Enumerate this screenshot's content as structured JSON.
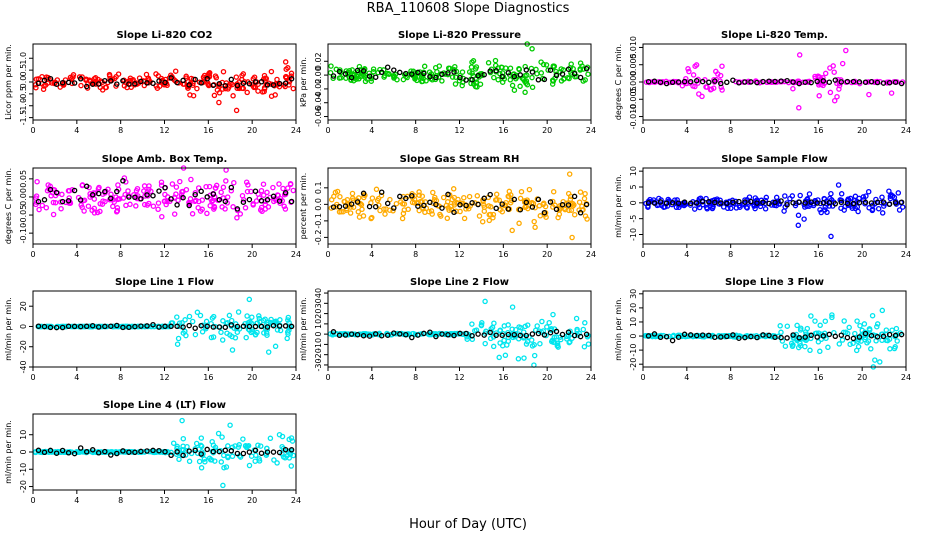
{
  "page": {
    "title": "RBA_110608  Slope Diagnostics",
    "xlabel": "Hour of Day (UTC)"
  },
  "chart_data": [
    {
      "type": "scatter",
      "title": "Slope Li-820 CO2",
      "ylabel": "Licor ppm per min.",
      "xlim": [
        0,
        24
      ],
      "xticks": [
        0,
        4,
        8,
        12,
        16,
        20,
        24
      ],
      "ylim": [
        -1.6,
        1.6
      ],
      "yticks": [
        -1.5,
        -1.0,
        -0.5,
        0.0,
        0.5,
        1.0
      ],
      "ytick_labels": [
        "-1.5",
        "-1.0",
        "-0.5",
        "0.0",
        "0.5",
        "1.0"
      ],
      "color": "#ff0000",
      "spread_before_12": 0.25,
      "spread_after_12": 0.45,
      "black_spread": 0.15,
      "mode": "wide"
    },
    {
      "type": "scatter",
      "title": "Slope Li-820 Pressure",
      "ylabel": "kPa per min.",
      "xlim": [
        0,
        24
      ],
      "xticks": [
        0,
        4,
        8,
        12,
        16,
        20,
        24
      ],
      "ylim": [
        -0.065,
        0.045
      ],
      "yticks": [
        -0.06,
        -0.04,
        -0.02,
        0.0,
        0.02
      ],
      "ytick_labels": [
        "-0.06",
        "-0.04",
        "-0.02",
        "0.00",
        "0.02"
      ],
      "color": "#00cc00",
      "spread_before_12": 0.012,
      "spread_after_12": 0.015,
      "black_spread": 0.008,
      "mode": "wide"
    },
    {
      "type": "scatter",
      "title": "Slope Li-820 Temp.",
      "ylabel": "degrees C per min.",
      "xlim": [
        0,
        24
      ],
      "xticks": [
        0,
        4,
        8,
        12,
        16,
        20,
        24
      ],
      "ylim": [
        -0.011,
        0.011
      ],
      "yticks": [
        -0.01,
        -0.005,
        0.0,
        0.005,
        0.01
      ],
      "ytick_labels": [
        "-0.010",
        "-0.005",
        "0.000",
        "0.005",
        "0.010"
      ],
      "color": "#ff00ff",
      "spread_before_12": 0.0,
      "spread_after_12": 0.0,
      "black_spread": 0.0005,
      "mode": "bursts",
      "bursts": [
        [
          3.5,
          7.5,
          0.004
        ],
        [
          15.5,
          18.5,
          0.004
        ]
      ]
    },
    {
      "type": "scatter",
      "title": "Slope Amb. Box Temp.",
      "ylabel": "degrees C per min.",
      "xlim": [
        0,
        24
      ],
      "xticks": [
        0,
        4,
        8,
        12,
        16,
        20,
        24
      ],
      "ylim": [
        -0.13,
        0.08
      ],
      "yticks": [
        -0.1,
        -0.05,
        0.0,
        0.05
      ],
      "ytick_labels": [
        "-0.10",
        "-0.05",
        "0.00",
        "0.05"
      ],
      "color": "#ff00ff",
      "spread_before_12": 0.04,
      "spread_after_12": 0.04,
      "black_spread": 0.03,
      "mode": "wide"
    },
    {
      "type": "scatter",
      "title": "Slope Gas Stream RH",
      "ylabel": "percent per min.",
      "xlim": [
        0,
        24
      ],
      "xticks": [
        0,
        4,
        8,
        12,
        16,
        20,
        24
      ],
      "ylim": [
        -0.24,
        0.22
      ],
      "yticks": [
        -0.2,
        -0.1,
        0.0,
        0.1
      ],
      "ytick_labels": [
        "-0.2",
        "-0.1",
        "0.0",
        "0.1"
      ],
      "color": "#ffaa00",
      "spread_before_12": 0.07,
      "spread_after_12": 0.07,
      "black_spread": 0.05,
      "mode": "wide"
    },
    {
      "type": "scatter",
      "title": "Slope Sample Flow",
      "ylabel": "ml/min per min.",
      "xlim": [
        0,
        24
      ],
      "xticks": [
        0,
        4,
        8,
        12,
        16,
        20,
        24
      ],
      "ylim": [
        -13,
        11
      ],
      "yticks": [
        -10,
        -5,
        0,
        5,
        10
      ],
      "ytick_labels": [
        "-10",
        "-5",
        "0",
        "5",
        "10"
      ],
      "color": "#0000ff",
      "spread_before_12": 1.5,
      "spread_after_12": 3.0,
      "black_spread": 0.4,
      "mode": "wide"
    },
    {
      "type": "scatter",
      "title": "Slope Line 1 Flow",
      "ylabel": "ml/min per min.",
      "xlim": [
        0,
        24
      ],
      "xticks": [
        0,
        4,
        8,
        12,
        16,
        20,
        24
      ],
      "ylim": [
        -40,
        35
      ],
      "yticks": [
        -40,
        -20,
        0,
        20
      ],
      "ytick_labels": [
        "-40",
        "-20",
        "0",
        "20"
      ],
      "color": "#00e5ee",
      "spread_before_12": 0.0,
      "spread_after_12": 12.0,
      "black_spread": 1.5,
      "mode": "late"
    },
    {
      "type": "scatter",
      "title": "Slope Line 2 Flow",
      "ylabel": "ml/min per min.",
      "xlim": [
        0,
        24
      ],
      "xticks": [
        0,
        4,
        8,
        12,
        16,
        20,
        24
      ],
      "ylim": [
        -32,
        42
      ],
      "yticks": [
        -30,
        -20,
        -10,
        0,
        10,
        20,
        30,
        40
      ],
      "ytick_labels": [
        "-30",
        "-20",
        "-10",
        "0",
        "10",
        "20",
        "30",
        "40"
      ],
      "color": "#00e5ee",
      "spread_before_12": 2.0,
      "spread_after_12": 12.0,
      "black_spread": 2.5,
      "mode": "late"
    },
    {
      "type": "scatter",
      "title": "Slope Line 3 Flow",
      "ylabel": "ml/min per min.",
      "xlim": [
        0,
        24
      ],
      "xticks": [
        0,
        4,
        8,
        12,
        16,
        20,
        24
      ],
      "ylim": [
        -22,
        32
      ],
      "yticks": [
        -20,
        -10,
        0,
        10,
        20,
        30
      ],
      "ytick_labels": [
        "-20",
        "-10",
        "0",
        "10",
        "20",
        "30"
      ],
      "color": "#00e5ee",
      "spread_before_12": 1.5,
      "spread_after_12": 9.0,
      "black_spread": 2.0,
      "mode": "late"
    },
    {
      "type": "scatter",
      "title": "Slope Line 4 (LT) Flow",
      "ylabel": "ml/min per min.",
      "xlim": [
        0,
        24
      ],
      "xticks": [
        0,
        4,
        8,
        12,
        16,
        20,
        24
      ],
      "ylim": [
        -22,
        22
      ],
      "yticks": [
        -20,
        -10,
        0,
        10
      ],
      "ytick_labels": [
        "-20",
        "-10",
        "0",
        "10"
      ],
      "color": "#00e5ee",
      "spread_before_12": 0.8,
      "spread_after_12": 7.0,
      "black_spread": 1.5,
      "mode": "late"
    }
  ]
}
